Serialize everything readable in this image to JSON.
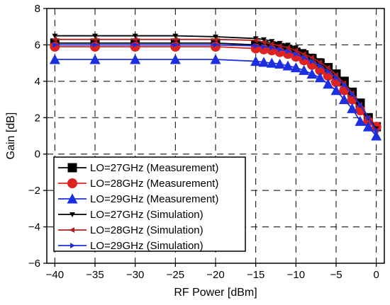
{
  "chart_data": {
    "type": "line",
    "title": "",
    "xlabel": "RF Power [dBm]",
    "ylabel": "Gain [dB]",
    "xlim": [
      -41,
      1
    ],
    "ylim": [
      -6,
      8
    ],
    "xticks": [
      -40,
      -35,
      -30,
      -25,
      -20,
      -15,
      -10,
      -5,
      0
    ],
    "yticks": [
      -6,
      -4,
      -2,
      0,
      2,
      4,
      6,
      8
    ],
    "xtick_labels": [
      "−40",
      "−35",
      "−30",
      "−25",
      "−20",
      "−15",
      "−10",
      "−5",
      "0"
    ],
    "ytick_labels": [
      "−6",
      "−4",
      "−2",
      "0",
      "2",
      "4",
      "6",
      "8"
    ],
    "grid": true,
    "legend_position": "bottom-left",
    "series": [
      {
        "name": "LO=27GHz (Measurement)",
        "color": "#000000",
        "marker": "square",
        "x": [
          -40,
          -35,
          -30,
          -25,
          -20,
          -15,
          -14,
          -13,
          -12,
          -11,
          -10,
          -9,
          -8,
          -7,
          -6,
          -5,
          -4,
          -3,
          -2,
          -1,
          0
        ],
        "y": [
          6.1,
          6.1,
          6.1,
          6.1,
          6.1,
          6.0,
          5.95,
          5.9,
          5.85,
          5.75,
          5.6,
          5.45,
          5.25,
          5.0,
          4.75,
          4.4,
          4.0,
          3.4,
          2.8,
          2.0,
          1.5
        ]
      },
      {
        "name": "LO=28GHz (Measurement)",
        "color": "#dd2222",
        "marker": "circle",
        "x": [
          -40,
          -35,
          -30,
          -25,
          -20,
          -15,
          -14,
          -13,
          -12,
          -11,
          -10,
          -9,
          -8,
          -7,
          -6,
          -5,
          -4,
          -3,
          -2,
          -1,
          0
        ],
        "y": [
          5.9,
          5.9,
          5.9,
          5.9,
          5.9,
          5.8,
          5.75,
          5.7,
          5.6,
          5.5,
          5.35,
          5.15,
          4.9,
          4.6,
          4.3,
          3.95,
          3.5,
          3.0,
          2.4,
          1.8,
          1.5
        ]
      },
      {
        "name": "LO=29GHz (Measurement)",
        "color": "#1c2fe0",
        "marker": "triangle",
        "x": [
          -40,
          -35,
          -30,
          -25,
          -20,
          -15,
          -14,
          -13,
          -12,
          -11,
          -10,
          -9,
          -8,
          -7,
          -6,
          -5,
          -4,
          -3,
          -2,
          -1,
          0
        ],
        "y": [
          5.2,
          5.2,
          5.2,
          5.2,
          5.2,
          5.1,
          5.05,
          5.0,
          4.95,
          4.85,
          4.75,
          4.6,
          4.4,
          4.2,
          3.85,
          3.5,
          3.0,
          2.5,
          1.8,
          1.5,
          1.0
        ]
      },
      {
        "name": "LO=27GHz (Simulation)",
        "color": "#000000",
        "marker": "tri-down",
        "x": [
          -40,
          -35,
          -30,
          -25,
          -20,
          -15,
          -14,
          -13,
          -12,
          -11,
          -10,
          -9,
          -8,
          -7,
          -6,
          -5,
          -4,
          -3,
          -2,
          -1,
          0
        ],
        "y": [
          6.5,
          6.5,
          6.5,
          6.5,
          6.45,
          6.35,
          6.3,
          6.2,
          6.1,
          6.0,
          5.85,
          5.65,
          5.4,
          5.15,
          4.8,
          4.4,
          3.9,
          3.3,
          2.7,
          2.0,
          1.4
        ]
      },
      {
        "name": "LO=28GHz (Simulation)",
        "color": "#b01c1c",
        "marker": "tri-left",
        "x": [
          -40,
          -35,
          -30,
          -25,
          -20,
          -15,
          -14,
          -13,
          -12,
          -11,
          -10,
          -9,
          -8,
          -7,
          -6,
          -5,
          -4,
          -3,
          -2,
          -1,
          0
        ],
        "y": [
          6.3,
          6.3,
          6.3,
          6.3,
          6.3,
          6.25,
          6.15,
          6.05,
          5.95,
          5.85,
          5.7,
          5.5,
          5.3,
          5.05,
          4.75,
          4.35,
          3.9,
          3.35,
          2.7,
          2.0,
          1.3
        ]
      },
      {
        "name": "LO=29GHz (Simulation)",
        "color": "#1c2fe0",
        "marker": "tri-right",
        "x": [
          -40,
          -35,
          -30,
          -25,
          -20,
          -15,
          -14,
          -13,
          -12,
          -11,
          -10,
          -9,
          -8,
          -7,
          -6,
          -5,
          -4,
          -3,
          -2,
          -1,
          0
        ],
        "y": [
          6.0,
          6.0,
          6.0,
          6.0,
          6.0,
          5.95,
          5.9,
          5.85,
          5.75,
          5.65,
          5.5,
          5.3,
          5.1,
          4.85,
          4.55,
          4.2,
          3.8,
          3.3,
          2.7,
          2.0,
          1.3
        ]
      }
    ]
  }
}
